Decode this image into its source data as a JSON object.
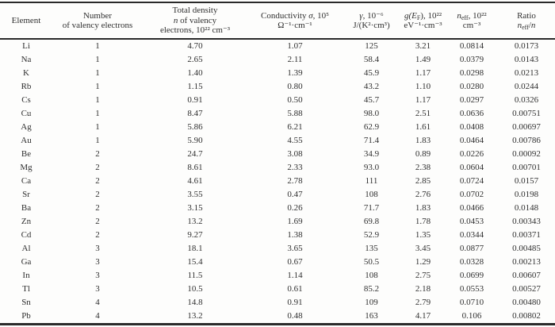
{
  "colors": {
    "text": "#2f2f2f",
    "border": "#2a2a2a",
    "background": "#fdfdfc"
  },
  "table": {
    "headers": {
      "element": {
        "line1": "Element"
      },
      "valency": {
        "line1": "Number",
        "line2": "of valency electrons"
      },
      "density": {
        "line1": "Total density",
        "line2_n": "n",
        "line2_rest": " of valency",
        "line3": "electrons, 10²² cm⁻³"
      },
      "conductivity": {
        "line1_label": "Conductivity ",
        "line1_sym": "σ",
        "line1_rest": ", 10⁵",
        "line2": "Ω⁻¹·cm⁻¹"
      },
      "gamma": {
        "line1_sym": "γ",
        "line1_rest": ", 10⁻⁶",
        "line2": "J/(K²·cm³)"
      },
      "gef": {
        "line1_pre": "g(E",
        "line1_sub": "F",
        "line1_rest": "), 10²²",
        "line2": "eV⁻¹·cm⁻³"
      },
      "neff": {
        "line1_sym": "n",
        "line1_sub": "eff",
        "line1_rest": ", 10²²",
        "line2": "cm⁻³"
      },
      "ratio": {
        "line1": "Ratio",
        "line2_sym": "n",
        "line2_sub": "eff",
        "line2_slash": "/",
        "line2_n2": "n"
      }
    },
    "rows": [
      [
        "Li",
        "1",
        "4.70",
        "1.07",
        "125",
        "3.21",
        "0.0814",
        "0.0173"
      ],
      [
        "Na",
        "1",
        "2.65",
        "2.11",
        "58.4",
        "1.49",
        "0.0379",
        "0.0143"
      ],
      [
        "K",
        "1",
        "1.40",
        "1.39",
        "45.9",
        "1.17",
        "0.0298",
        "0.0213"
      ],
      [
        "Rb",
        "1",
        "1.15",
        "0.80",
        "43.2",
        "1.10",
        "0.0280",
        "0.0244"
      ],
      [
        "Cs",
        "1",
        "0.91",
        "0.50",
        "45.7",
        "1.17",
        "0.0297",
        "0.0326"
      ],
      [
        "Cu",
        "1",
        "8.47",
        "5.88",
        "98.0",
        "2.51",
        "0.0636",
        "0.00751"
      ],
      [
        "Ag",
        "1",
        "5.86",
        "6.21",
        "62.9",
        "1.61",
        "0.0408",
        "0.00697"
      ],
      [
        "Au",
        "1",
        "5.90",
        "4.55",
        "71.4",
        "1.83",
        "0.0464",
        "0.00786"
      ],
      [
        "Be",
        "2",
        "24.7",
        "3.08",
        "34.9",
        "0.89",
        "0.0226",
        "0.00092"
      ],
      [
        "Mg",
        "2",
        "8.61",
        "2.33",
        "93.0",
        "2.38",
        "0.0604",
        "0.00701"
      ],
      [
        "Ca",
        "2",
        "4.61",
        "2.78",
        "111",
        "2.85",
        "0.0724",
        "0.0157"
      ],
      [
        "Sr",
        "2",
        "3.55",
        "0.47",
        "108",
        "2.76",
        "0.0702",
        "0.0198"
      ],
      [
        "Ba",
        "2",
        "3.15",
        "0.26",
        "71.7",
        "1.83",
        "0.0466",
        "0.0148"
      ],
      [
        "Zn",
        "2",
        "13.2",
        "1.69",
        "69.8",
        "1.78",
        "0.0453",
        "0.00343"
      ],
      [
        "Cd",
        "2",
        "9.27",
        "1.38",
        "52.9",
        "1.35",
        "0.0344",
        "0.00371"
      ],
      [
        "Al",
        "3",
        "18.1",
        "3.65",
        "135",
        "3.45",
        "0.0877",
        "0.00485"
      ],
      [
        "Ga",
        "3",
        "15.4",
        "0.67",
        "50.5",
        "1.29",
        "0.0328",
        "0.00213"
      ],
      [
        "In",
        "3",
        "11.5",
        "1.14",
        "108",
        "2.75",
        "0.0699",
        "0.00607"
      ],
      [
        "Tl",
        "3",
        "10.5",
        "0.61",
        "85.2",
        "2.18",
        "0.0553",
        "0.00527"
      ],
      [
        "Sn",
        "4",
        "14.8",
        "0.91",
        "109",
        "2.79",
        "0.0710",
        "0.00480"
      ],
      [
        "Pb",
        "4",
        "13.2",
        "0.48",
        "163",
        "4.17",
        "0.106",
        "0.00802"
      ]
    ]
  }
}
